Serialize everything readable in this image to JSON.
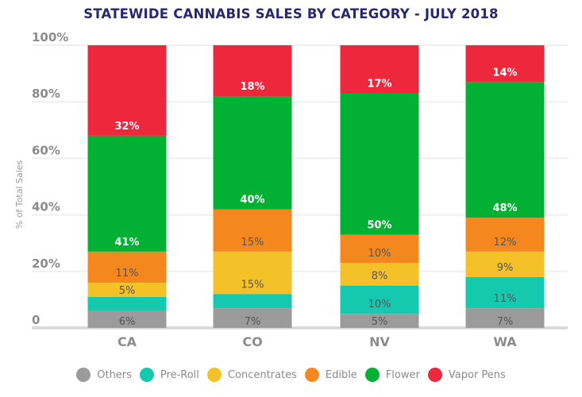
{
  "chart_data": {
    "type": "bar",
    "stacked": true,
    "title": "STATEWIDE CANNABIS SALES  BY CATEGORY - JULY 2018",
    "xlabel": "",
    "ylabel": "% of Total Sales",
    "ylim": [
      0,
      100
    ],
    "yticks": [
      0,
      20,
      40,
      60,
      80,
      100
    ],
    "ytick_labels": [
      "0",
      "20%",
      "40%",
      "60%",
      "80%",
      "100%"
    ],
    "grid": true,
    "legend_position": "bottom",
    "categories": [
      "CA",
      "CO",
      "NV",
      "WA"
    ],
    "series": [
      {
        "name": "Others",
        "color": "#9b9b9b",
        "values": [
          6,
          7,
          5,
          7
        ],
        "labels": [
          "6%",
          "7%",
          "5%",
          "7%"
        ],
        "label_color": "#555555"
      },
      {
        "name": "Pre-Roll",
        "color": "#14c9ad",
        "values": [
          5,
          5,
          10,
          11
        ],
        "labels": [
          "",
          "",
          "10%",
          "11%"
        ],
        "label_color": "#555555"
      },
      {
        "name": "Concentrates",
        "color": "#f5c129",
        "values": [
          5,
          15,
          8,
          9
        ],
        "labels": [
          "5%",
          "15%",
          "8%",
          "9%"
        ],
        "label_color": "#555555"
      },
      {
        "name": "Edible",
        "color": "#f5871f",
        "values": [
          11,
          15,
          10,
          12
        ],
        "labels": [
          "11%",
          "15%",
          "10%",
          "12%"
        ],
        "label_color": "#555555"
      },
      {
        "name": "Flower",
        "color": "#02b033",
        "values": [
          41,
          40,
          50,
          48
        ],
        "labels": [
          "41%",
          "40%",
          "50%",
          "48%"
        ],
        "label_color": "#ffffff"
      },
      {
        "name": "Vapor Pens",
        "color": "#ee283c",
        "values": [
          32,
          18,
          17,
          14
        ],
        "labels": [
          "32%",
          "18%",
          "17%",
          "14%"
        ],
        "label_color": "#ffffff"
      }
    ]
  }
}
